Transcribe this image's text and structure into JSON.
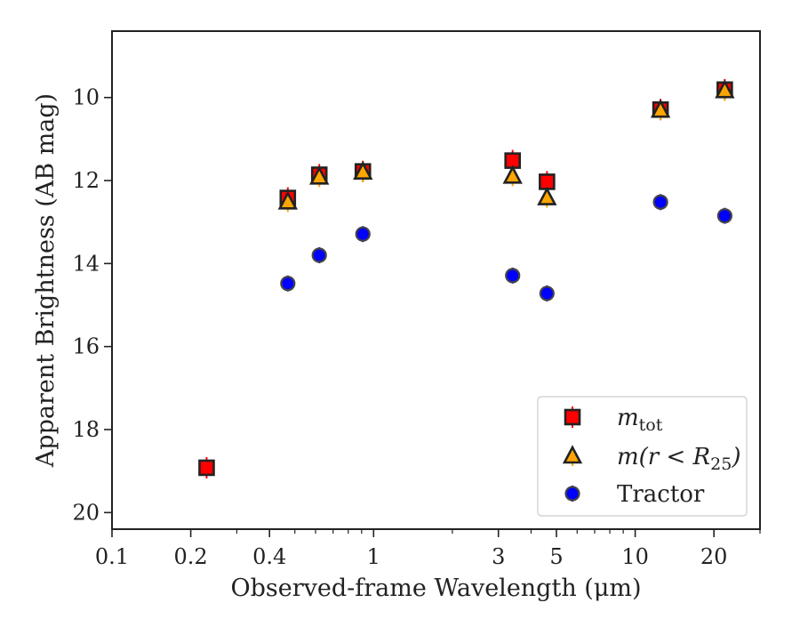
{
  "chart_data": {
    "type": "scatter",
    "title": "",
    "xlabel": "Observed-frame Wavelength (μm)",
    "ylabel": "Apparent Brightness (AB mag)",
    "xscale": "log",
    "xlim": [
      0.1,
      30
    ],
    "ylim": [
      20.4,
      8.4
    ],
    "y_inverted": true,
    "x_ticks": [
      0.1,
      0.2,
      0.4,
      1,
      3,
      5,
      10,
      20
    ],
    "x_tick_labels": [
      "0.1",
      "0.2",
      "0.4",
      "1",
      "3",
      "5",
      "10",
      "20"
    ],
    "y_ticks": [
      10,
      12,
      14,
      16,
      18,
      20
    ],
    "y_tick_labels": [
      "10",
      "12",
      "14",
      "16",
      "18",
      "20"
    ],
    "grid": false,
    "legend_position": "lower-right",
    "series": [
      {
        "name": "m_tot",
        "legend_parts": [
          "m",
          "tot"
        ],
        "marker": "square",
        "color": "#ff0000",
        "edge_color": "#222222",
        "x": [
          0.23,
          0.47,
          0.62,
          0.91,
          3.4,
          4.6,
          12.5,
          22.0
        ],
        "y": [
          18.92,
          12.42,
          11.86,
          11.78,
          11.52,
          12.03,
          10.29,
          9.81
        ]
      },
      {
        "name": "m(r<R_25)",
        "legend_parts": [
          "m(r < R",
          "25",
          ")"
        ],
        "marker": "triangle",
        "color": "#ffa500",
        "edge_color": "#222222",
        "x": [
          0.47,
          0.62,
          0.91,
          3.4,
          4.6,
          12.5,
          22.0
        ],
        "y": [
          12.52,
          11.92,
          11.8,
          11.9,
          12.42,
          10.31,
          9.84
        ]
      },
      {
        "name": "Tractor",
        "marker": "circle",
        "color": "#0000ff",
        "edge_color": "#444444",
        "x": [
          0.47,
          0.62,
          0.91,
          3.4,
          4.6,
          12.5,
          22.0
        ],
        "y": [
          14.48,
          13.8,
          13.29,
          14.29,
          14.72,
          12.52,
          12.85
        ]
      }
    ]
  }
}
